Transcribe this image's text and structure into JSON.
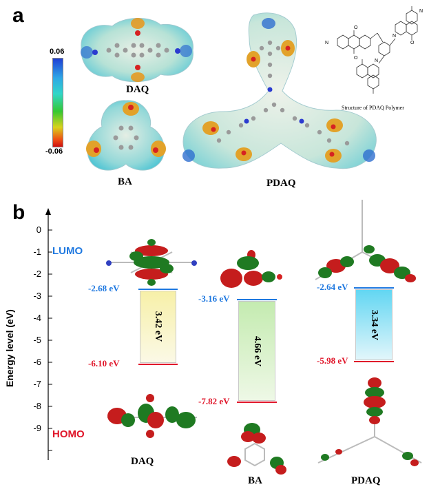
{
  "panel_a": {
    "letter": "a",
    "legend": {
      "max": "0.06",
      "min": "-0.06"
    },
    "labels": {
      "daq": "DAQ",
      "ba": "BA",
      "pdaq": "PDAQ"
    },
    "inset_caption": "Structure of PDAQ Polymer"
  },
  "panel_b": {
    "letter": "b",
    "ylabel": "Energy level (eV)",
    "yticks": [
      "0",
      "-1",
      "-2",
      "-3",
      "-4",
      "-5",
      "-6",
      "-7",
      "-8",
      "-9"
    ],
    "lumo_label": "LUMO",
    "homo_label": "HOMO",
    "molecules": [
      {
        "name": "DAQ",
        "lumo": "-2.68 eV",
        "homo": "-6.10 eV",
        "gap": "3.42 eV"
      },
      {
        "name": "BA",
        "lumo": "-3.16 eV",
        "homo": "-7.82 eV",
        "gap": "4.66 eV"
      },
      {
        "name": "PDAQ",
        "lumo": "-2.64 eV",
        "homo": "-5.98 eV",
        "gap": "3.34 eV"
      }
    ],
    "colors": {
      "lumo": "#1e78e0",
      "homo": "#e0162a"
    }
  }
}
